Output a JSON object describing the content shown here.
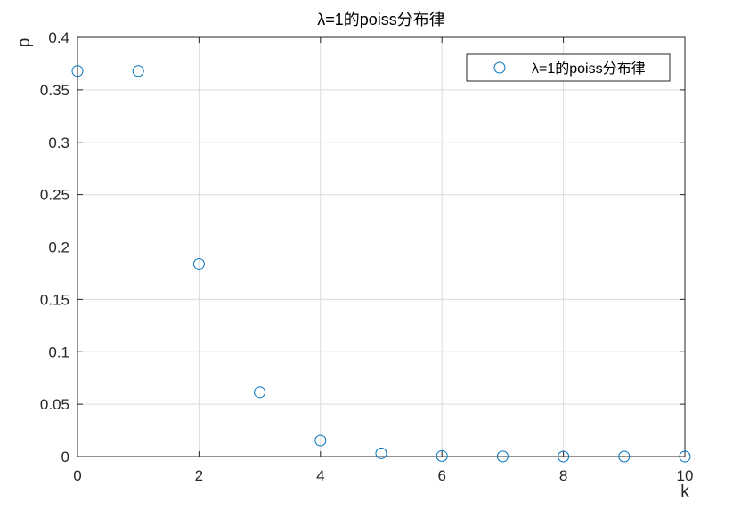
{
  "chart_data": {
    "type": "scatter",
    "title": "λ=1的poiss分布律",
    "xlabel": "k",
    "ylabel": "p",
    "xlim": [
      0,
      10
    ],
    "ylim": [
      0,
      0.4
    ],
    "xticks": [
      0,
      2,
      4,
      6,
      8,
      10
    ],
    "xtick_labels": [
      "0",
      "2",
      "4",
      "6",
      "8",
      "10"
    ],
    "yticks": [
      0,
      0.05,
      0.1,
      0.15,
      0.2,
      0.25,
      0.3,
      0.35,
      0.4
    ],
    "ytick_labels": [
      "0",
      "0.05",
      "0.1",
      "0.15",
      "0.2",
      "0.25",
      "0.3",
      "0.35",
      "0.4"
    ],
    "grid": true,
    "legend_position": "top-right",
    "marker": "open-circle",
    "color": "#0072BD",
    "series": [
      {
        "name": "λ=1的poiss分布律",
        "x": [
          0,
          1,
          2,
          3,
          4,
          5,
          6,
          7,
          8,
          9,
          10
        ],
        "y": [
          0.3679,
          0.3679,
          0.1839,
          0.0613,
          0.0153,
          0.0031,
          0.0005,
          0.0001,
          0.0,
          0.0,
          0.0
        ]
      }
    ]
  }
}
